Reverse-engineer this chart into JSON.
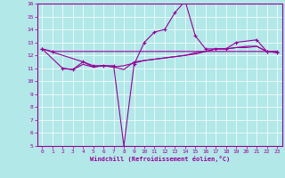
{
  "xlabel": "Windchill (Refroidissement éolien,°C)",
  "background_color": "#b2e8e8",
  "line_color": "#990099",
  "grid_color": "#ffffff",
  "xlim": [
    -0.5,
    23.5
  ],
  "ylim": [
    5,
    16
  ],
  "yticks": [
    5,
    6,
    7,
    8,
    9,
    10,
    11,
    12,
    13,
    14,
    15,
    16
  ],
  "xticks": [
    0,
    1,
    2,
    3,
    4,
    5,
    6,
    7,
    8,
    9,
    10,
    11,
    12,
    13,
    14,
    15,
    16,
    17,
    18,
    19,
    20,
    21,
    22,
    23
  ],
  "series": [
    {
      "x": [
        0,
        1,
        22,
        23
      ],
      "y": [
        12.5,
        12.3,
        12.3,
        12.3
      ],
      "marker": "+"
    },
    {
      "x": [
        2,
        3,
        4,
        5,
        6,
        7,
        8,
        9,
        10,
        11,
        12,
        13,
        14,
        15,
        16,
        17,
        18,
        19,
        20,
        21,
        22,
        23
      ],
      "y": [
        11.0,
        10.9,
        11.3,
        11.1,
        11.2,
        11.1,
        10.9,
        11.5,
        11.6,
        11.7,
        11.8,
        11.9,
        12.0,
        12.2,
        12.3,
        12.5,
        12.5,
        12.6,
        12.6,
        12.7,
        12.3,
        12.3
      ],
      "marker": null
    },
    {
      "x": [
        0,
        2,
        3,
        4,
        5,
        6,
        7,
        8,
        9,
        10,
        11,
        12,
        13,
        14,
        15,
        16,
        17,
        18,
        19,
        21,
        22,
        23
      ],
      "y": [
        12.5,
        11.0,
        10.9,
        11.5,
        11.2,
        11.2,
        11.2,
        5.0,
        11.3,
        13.0,
        13.8,
        14.0,
        15.3,
        16.2,
        13.5,
        12.5,
        12.5,
        12.5,
        13.0,
        13.2,
        12.3,
        12.2
      ],
      "marker": "+"
    },
    {
      "x": [
        0,
        4,
        5,
        6,
        7,
        8,
        9,
        10,
        11,
        12,
        13,
        14,
        15,
        16,
        17,
        18,
        19,
        20,
        21,
        22,
        23
      ],
      "y": [
        12.5,
        11.5,
        11.1,
        11.2,
        11.1,
        11.2,
        11.4,
        11.6,
        11.7,
        11.8,
        11.9,
        12.0,
        12.1,
        12.3,
        12.5,
        12.5,
        12.6,
        12.7,
        12.7,
        12.3,
        12.3
      ],
      "marker": null
    }
  ]
}
